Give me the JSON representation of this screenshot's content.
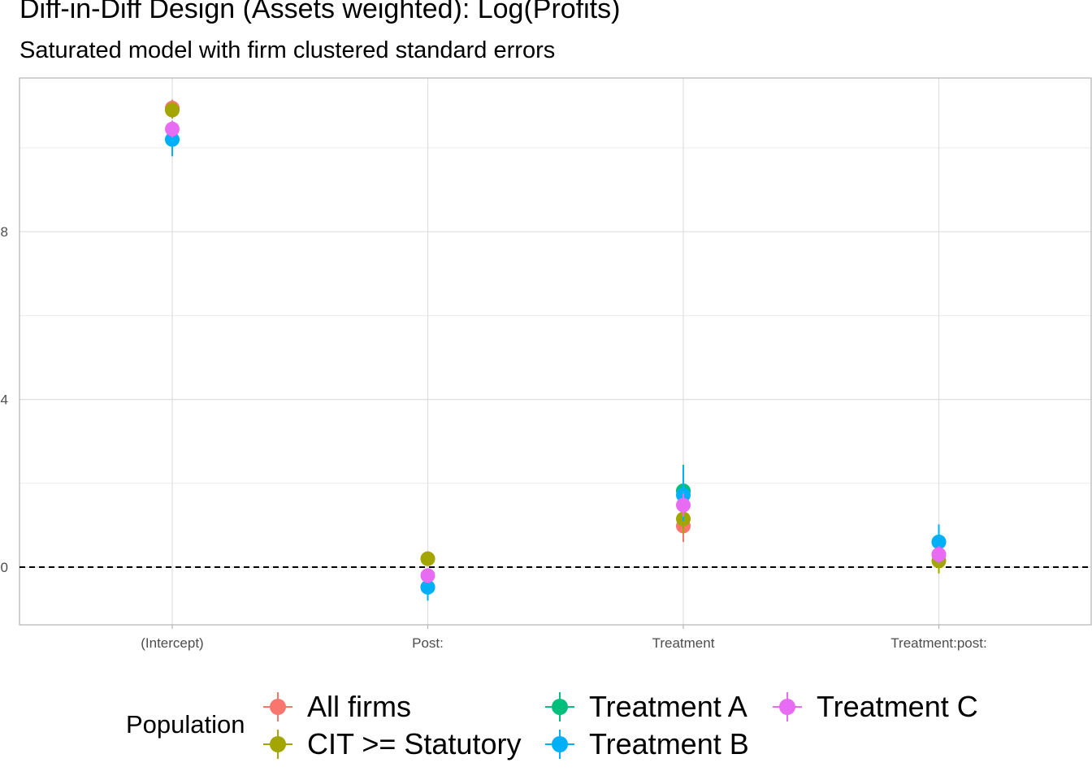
{
  "title": "Diff-in-Diff Design (Assets weighted): Log(Profits)",
  "subtitle": "Saturated model with firm clustered standard errors",
  "legend": {
    "title": "Population",
    "items": [
      {
        "label": "All firms",
        "color": "#F8766D"
      },
      {
        "label": "CIT >= Statutory",
        "color": "#A3A500"
      },
      {
        "label": "Treatment A",
        "color": "#00BF7D"
      },
      {
        "label": "Treatment B",
        "color": "#00B0F6"
      },
      {
        "label": "Treatment C",
        "color": "#E76BF3"
      }
    ]
  },
  "chart_data": {
    "type": "scatter",
    "categories": [
      "(Intercept)",
      "Post:",
      "Treatment",
      "Treatment:post:"
    ],
    "ylim": [
      -1.4,
      11.8
    ],
    "yticks": [
      0,
      4,
      8
    ],
    "reference_line": {
      "y": 0,
      "style": "dashed"
    },
    "grid": true,
    "legend_position": "bottom",
    "series": [
      {
        "name": "All firms",
        "color": "#F8766D",
        "values": [
          10.95,
          0.2,
          0.98,
          0.3
        ],
        "lower": [
          10.75,
          0.08,
          0.6,
          0.05
        ],
        "upper": [
          11.15,
          0.32,
          1.36,
          0.55
        ]
      },
      {
        "name": "CIT >= Statutory",
        "color": "#A3A500",
        "values": [
          10.9,
          0.2,
          1.15,
          0.15
        ],
        "lower": [
          10.7,
          0.1,
          0.8,
          -0.15
        ],
        "upper": [
          11.1,
          0.3,
          1.5,
          0.45
        ]
      },
      {
        "name": "Treatment A",
        "color": "#00BF7D",
        "values": [
          10.2,
          -0.48,
          1.82,
          0.6
        ],
        "lower": [
          9.85,
          -0.78,
          1.2,
          0.2
        ],
        "upper": [
          10.55,
          -0.18,
          2.44,
          1.0
        ]
      },
      {
        "name": "Treatment B",
        "color": "#00B0F6",
        "values": [
          10.2,
          -0.48,
          1.72,
          0.6
        ],
        "lower": [
          9.8,
          -0.8,
          1.1,
          0.2
        ],
        "upper": [
          10.6,
          -0.16,
          2.4,
          1.02
        ]
      },
      {
        "name": "Treatment C",
        "color": "#E76BF3",
        "values": [
          10.45,
          -0.2,
          1.48,
          0.3
        ],
        "lower": [
          10.25,
          -0.35,
          1.2,
          0.1
        ],
        "upper": [
          10.65,
          -0.05,
          1.76,
          0.5
        ]
      }
    ]
  }
}
